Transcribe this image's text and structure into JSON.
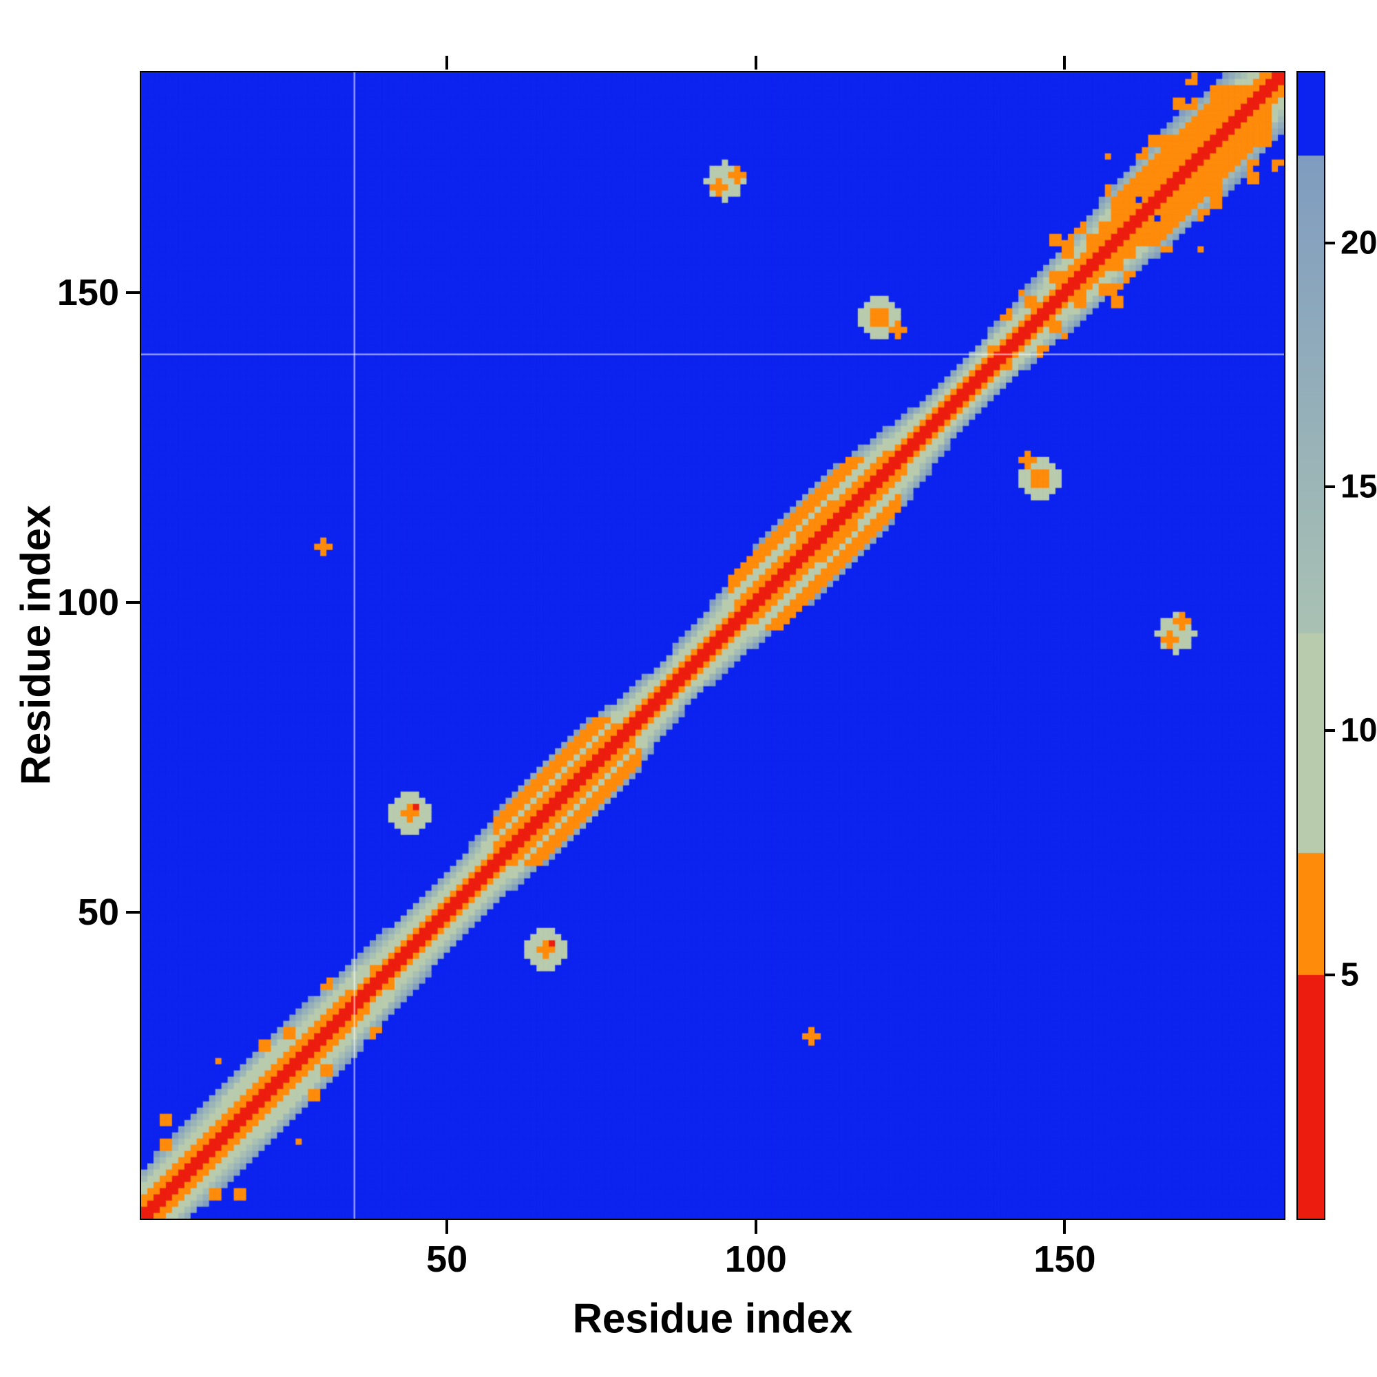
{
  "chart_data": {
    "type": "heatmap",
    "title": "",
    "xlabel": "Residue index",
    "ylabel": "Residue index",
    "x_range": [
      1,
      185
    ],
    "y_range": [
      1,
      185
    ],
    "n_residues": 185,
    "x_ticks": [
      50,
      100,
      150
    ],
    "y_ticks": [
      50,
      100,
      150
    ],
    "grid": false,
    "legend": "colorbar-right",
    "background_color": "#0c22ee",
    "colorbar": {
      "position": "right",
      "vmin": 0,
      "vmax": 23.5,
      "ticks": [
        5,
        10,
        15,
        20
      ],
      "segments": [
        {
          "from": 0,
          "to": 5,
          "color": "#ec1d0e"
        },
        {
          "from": 5,
          "to": 7.5,
          "color": "#ff8b0a"
        },
        {
          "from": 7.5,
          "to": 12,
          "color": "#b9cbad"
        },
        {
          "from": 12,
          "to": 21.8,
          "from_color": "#a9c1b3",
          "to_color": "#7f9cc0"
        },
        {
          "from": 21.8,
          "to": 23.5,
          "color": "#0c22ee"
        }
      ]
    },
    "diagonal_band": {
      "red_halfwidth": 1,
      "orange_fraction": 0.38,
      "profile": [
        [
          1,
          8
        ],
        [
          6,
          8.5
        ],
        [
          14,
          9
        ],
        [
          22,
          9.5
        ],
        [
          30,
          9
        ],
        [
          38,
          7.5
        ],
        [
          46,
          7.5
        ],
        [
          53,
          6.5
        ],
        [
          60,
          8
        ],
        [
          66,
          9.5
        ],
        [
          72,
          10
        ],
        [
          78,
          8.5
        ],
        [
          84,
          6
        ],
        [
          90,
          6
        ],
        [
          96,
          7.5
        ],
        [
          103,
          9
        ],
        [
          110,
          11
        ],
        [
          116,
          10.5
        ],
        [
          121,
          9
        ],
        [
          127,
          6
        ],
        [
          133,
          5.5
        ],
        [
          139,
          6
        ],
        [
          145,
          7
        ],
        [
          151,
          8
        ],
        [
          157,
          9
        ],
        [
          163,
          10
        ],
        [
          169,
          11.5
        ],
        [
          175,
          11
        ],
        [
          180,
          9.5
        ],
        [
          185,
          8.5
        ]
      ]
    },
    "stripe_regions": [
      {
        "range": [
          96,
          123
        ],
        "d": [
          6,
          8
        ]
      },
      {
        "range": [
          58,
          81
        ],
        "d": [
          5,
          7
        ]
      },
      {
        "range": [
          158,
          183
        ],
        "d": [
          4,
          7
        ]
      }
    ],
    "contacts": [
      {
        "x": 30,
        "y": 109,
        "r": 1.2,
        "v": 6
      },
      {
        "x": 44,
        "y": 66,
        "r": 3.2,
        "v": 10
      },
      {
        "x": 44,
        "y": 66,
        "r": 1.4,
        "v": 6
      },
      {
        "x": 45,
        "y": 67,
        "r": 0.7,
        "v": 4
      },
      {
        "x": 95,
        "y": 168,
        "r": 3.0,
        "v": 10
      },
      {
        "x": 94,
        "y": 167,
        "r": 1.3,
        "v": 6
      },
      {
        "x": 97,
        "y": 169,
        "r": 1.3,
        "v": 6
      },
      {
        "x": 120,
        "y": 146,
        "r": 3.2,
        "v": 10
      },
      {
        "x": 120,
        "y": 146,
        "r": 1.7,
        "v": 6
      },
      {
        "x": 123,
        "y": 144,
        "r": 1.0,
        "v": 6
      }
    ],
    "speckle_regions": [
      {
        "range": [
          1,
          42
        ],
        "p_orange": 0.15,
        "p_red": 0.03,
        "p_blue": 0.0,
        "seed": 7
      },
      {
        "range": [
          138,
          185
        ],
        "p_orange": 0.2,
        "p_red": 0.04,
        "p_blue": 0.05,
        "seed": 19
      }
    ],
    "gridlines": {
      "x": [
        35
      ],
      "y": [
        140
      ]
    }
  }
}
